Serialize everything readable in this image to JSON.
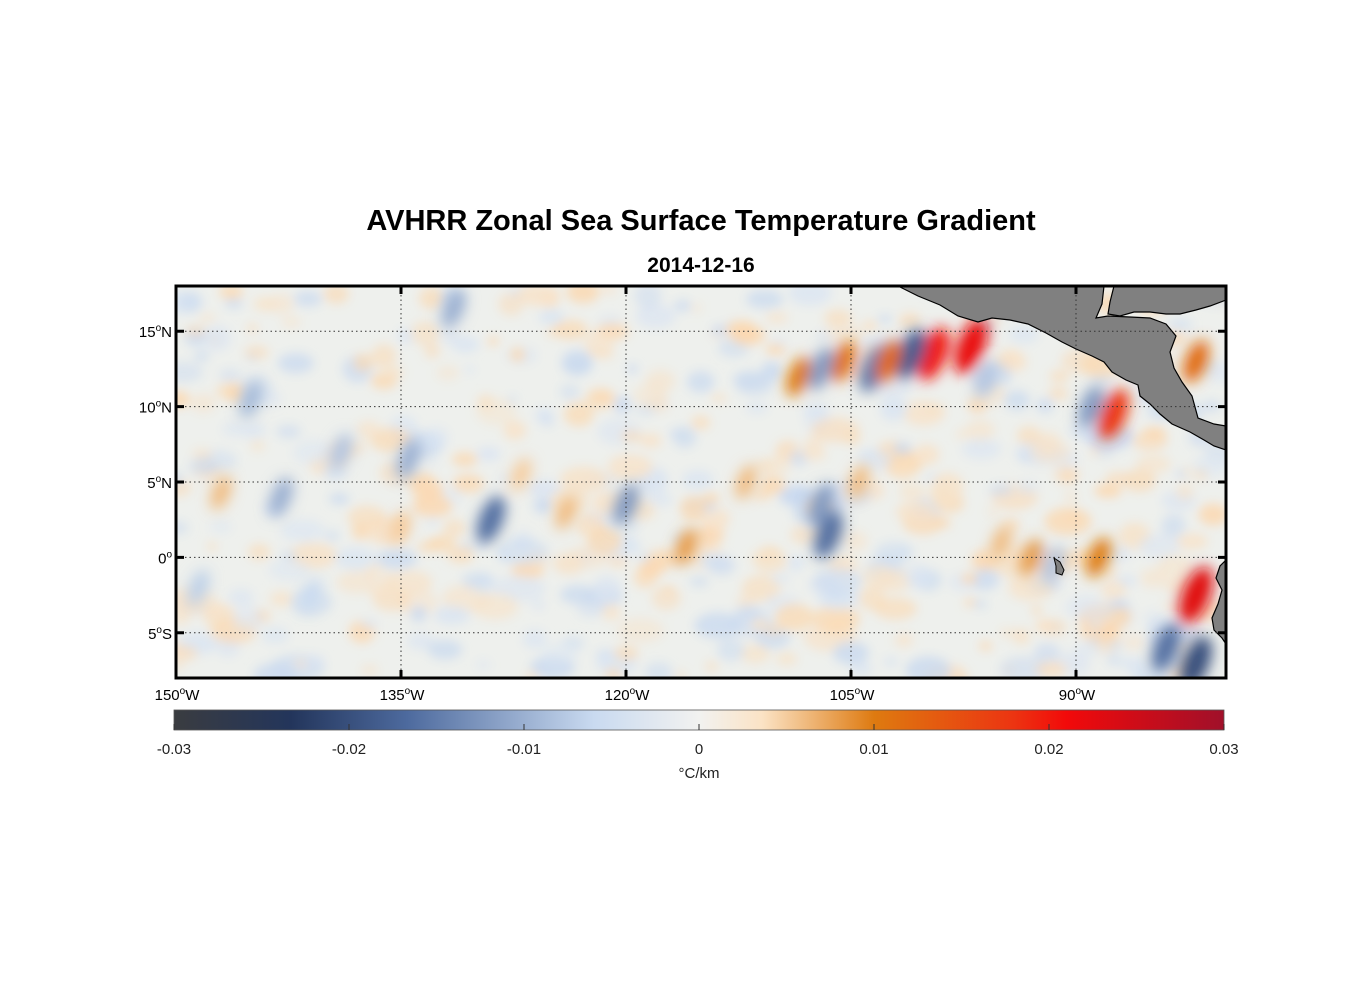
{
  "title": "AVHRR Zonal Sea Surface Temperature Gradient",
  "subtitle": "2014-12-16",
  "map": {
    "lon_range": [
      -150,
      -80
    ],
    "lat_range": [
      -8,
      18
    ],
    "lon_ticks": [
      {
        "value": -150,
        "num": "150",
        "deg": "o",
        "hemi": "W"
      },
      {
        "value": -135,
        "num": "135",
        "deg": "o",
        "hemi": "W"
      },
      {
        "value": -120,
        "num": "120",
        "deg": "o",
        "hemi": "W"
      },
      {
        "value": -105,
        "num": "105",
        "deg": "o",
        "hemi": "W"
      },
      {
        "value": -90,
        "num": "90",
        "deg": "o",
        "hemi": "W"
      }
    ],
    "lat_ticks": [
      {
        "value": 15,
        "num": "15",
        "deg": "o",
        "hemi": "N"
      },
      {
        "value": 10,
        "num": "10",
        "deg": "o",
        "hemi": "N"
      },
      {
        "value": 5,
        "num": "5",
        "deg": "o",
        "hemi": "N"
      },
      {
        "value": 0,
        "num": "0",
        "deg": "o",
        "hemi": ""
      },
      {
        "value": -5,
        "num": "5",
        "deg": "o",
        "hemi": "S"
      }
    ],
    "land_color": "#808080",
    "grid": true
  },
  "colorbar": {
    "min": -0.03,
    "max": 0.03,
    "ticks": [
      "-0.03",
      "-0.02",
      "-0.01",
      "0",
      "0.01",
      "0.02",
      "0.03"
    ],
    "tick_values": [
      -0.03,
      -0.02,
      -0.01,
      0,
      0.01,
      0.02,
      0.03
    ],
    "unit_label": "°C/km",
    "colors": [
      "#3a3c40",
      "#23355b",
      "#4d6a9e",
      "#c9daf0",
      "#f2f2f0",
      "#fbe3c5",
      "#de7a10",
      "#ec3411",
      "#f20a0a",
      "#a0102a"
    ]
  },
  "features": [
    {
      "lon": -99.5,
      "lat": 13.5,
      "value": 0.02
    },
    {
      "lon": -97,
      "lat": 14,
      "value": 0.022
    },
    {
      "lon": -101,
      "lat": 13.5,
      "value": -0.018
    },
    {
      "lon": -103.5,
      "lat": 12.5,
      "value": -0.015
    },
    {
      "lon": -105.5,
      "lat": 13,
      "value": 0.011
    },
    {
      "lon": -107,
      "lat": 12.5,
      "value": -0.012
    },
    {
      "lon": -108.5,
      "lat": 12,
      "value": 0.01
    },
    {
      "lon": -102.5,
      "lat": 13,
      "value": 0.012
    },
    {
      "lon": -87.5,
      "lat": 9.5,
      "value": 0.018
    },
    {
      "lon": -89,
      "lat": 10,
      "value": -0.012
    },
    {
      "lon": -82,
      "lat": 13,
      "value": 0.012
    },
    {
      "lon": -82,
      "lat": -2.5,
      "value": 0.023
    },
    {
      "lon": -84,
      "lat": -6,
      "value": -0.016
    },
    {
      "lon": -82,
      "lat": -7,
      "value": -0.02
    },
    {
      "lon": -106.5,
      "lat": 1.5,
      "value": -0.016
    },
    {
      "lon": -107,
      "lat": 3.5,
      "value": -0.012
    },
    {
      "lon": -129,
      "lat": 2.5,
      "value": -0.016
    },
    {
      "lon": -120,
      "lat": 3.5,
      "value": -0.012
    },
    {
      "lon": -124,
      "lat": 3,
      "value": 0.006
    },
    {
      "lon": -116,
      "lat": 0.7,
      "value": 0.008
    },
    {
      "lon": -88.5,
      "lat": 0,
      "value": 0.01
    },
    {
      "lon": -93,
      "lat": 0,
      "value": 0.008
    },
    {
      "lon": -91.5,
      "lat": -0.5,
      "value": -0.008
    },
    {
      "lon": -134.5,
      "lat": 6.5,
      "value": -0.01
    },
    {
      "lon": -145,
      "lat": 10.5,
      "value": -0.009
    },
    {
      "lon": -143,
      "lat": 4,
      "value": -0.01
    },
    {
      "lon": -139,
      "lat": 7,
      "value": -0.008
    },
    {
      "lon": -147,
      "lat": 4.3,
      "value": 0.006
    },
    {
      "lon": -131.5,
      "lat": 16.5,
      "value": -0.01
    },
    {
      "lon": -104.5,
      "lat": 5,
      "value": 0.006
    },
    {
      "lon": -96,
      "lat": 11.8,
      "value": -0.008
    },
    {
      "lon": -148.5,
      "lat": -2,
      "value": -0.007
    },
    {
      "lon": -141,
      "lat": -2.5,
      "value": -0.006
    },
    {
      "lon": -112,
      "lat": 5,
      "value": 0.006
    },
    {
      "lon": -135,
      "lat": 2,
      "value": 0.005
    },
    {
      "lon": -127,
      "lat": 5.5,
      "value": 0.005
    },
    {
      "lon": -95,
      "lat": 1,
      "value": 0.006
    }
  ]
}
